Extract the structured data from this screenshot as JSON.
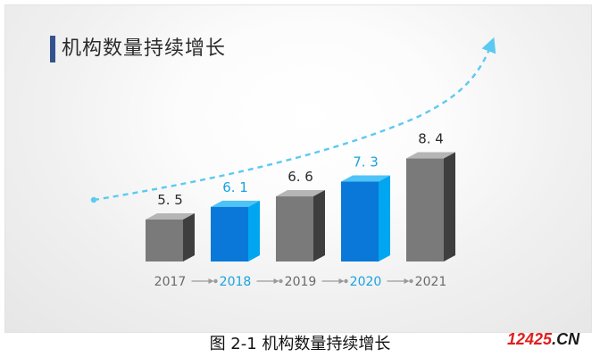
{
  "slide": {
    "title": "机构数量持续增长"
  },
  "caption": "图 2-1 机构数量持续增长",
  "watermark": {
    "number": "12425",
    "suffix": ".CN"
  },
  "colors": {
    "gray_front": "#7a7a7a",
    "gray_side": "#3e3e3e",
    "gray_top": "#b5b5b5",
    "blue_front": "#0a78d8",
    "blue_side": "#00a6f0",
    "blue_top": "#4dc3f7",
    "blue_text": "#1aa3e0",
    "dark_text": "#2b2b2b",
    "year_gray": "#6a6a6a",
    "trend_line": "#5ccaf0",
    "title_bar": "#33528f"
  },
  "chart_data": {
    "type": "bar",
    "categories": [
      "2017",
      "2018",
      "2019",
      "2020",
      "2021"
    ],
    "values": [
      5.5,
      6.1,
      6.6,
      7.3,
      8.4
    ],
    "value_labels": [
      "5. 5",
      "6. 1",
      "6. 6",
      "7. 3",
      "8. 4"
    ],
    "highlight": [
      false,
      true,
      false,
      true,
      false
    ],
    "title": "",
    "xlabel": "",
    "ylabel": "",
    "grid": false,
    "trend_arrow": true
  }
}
